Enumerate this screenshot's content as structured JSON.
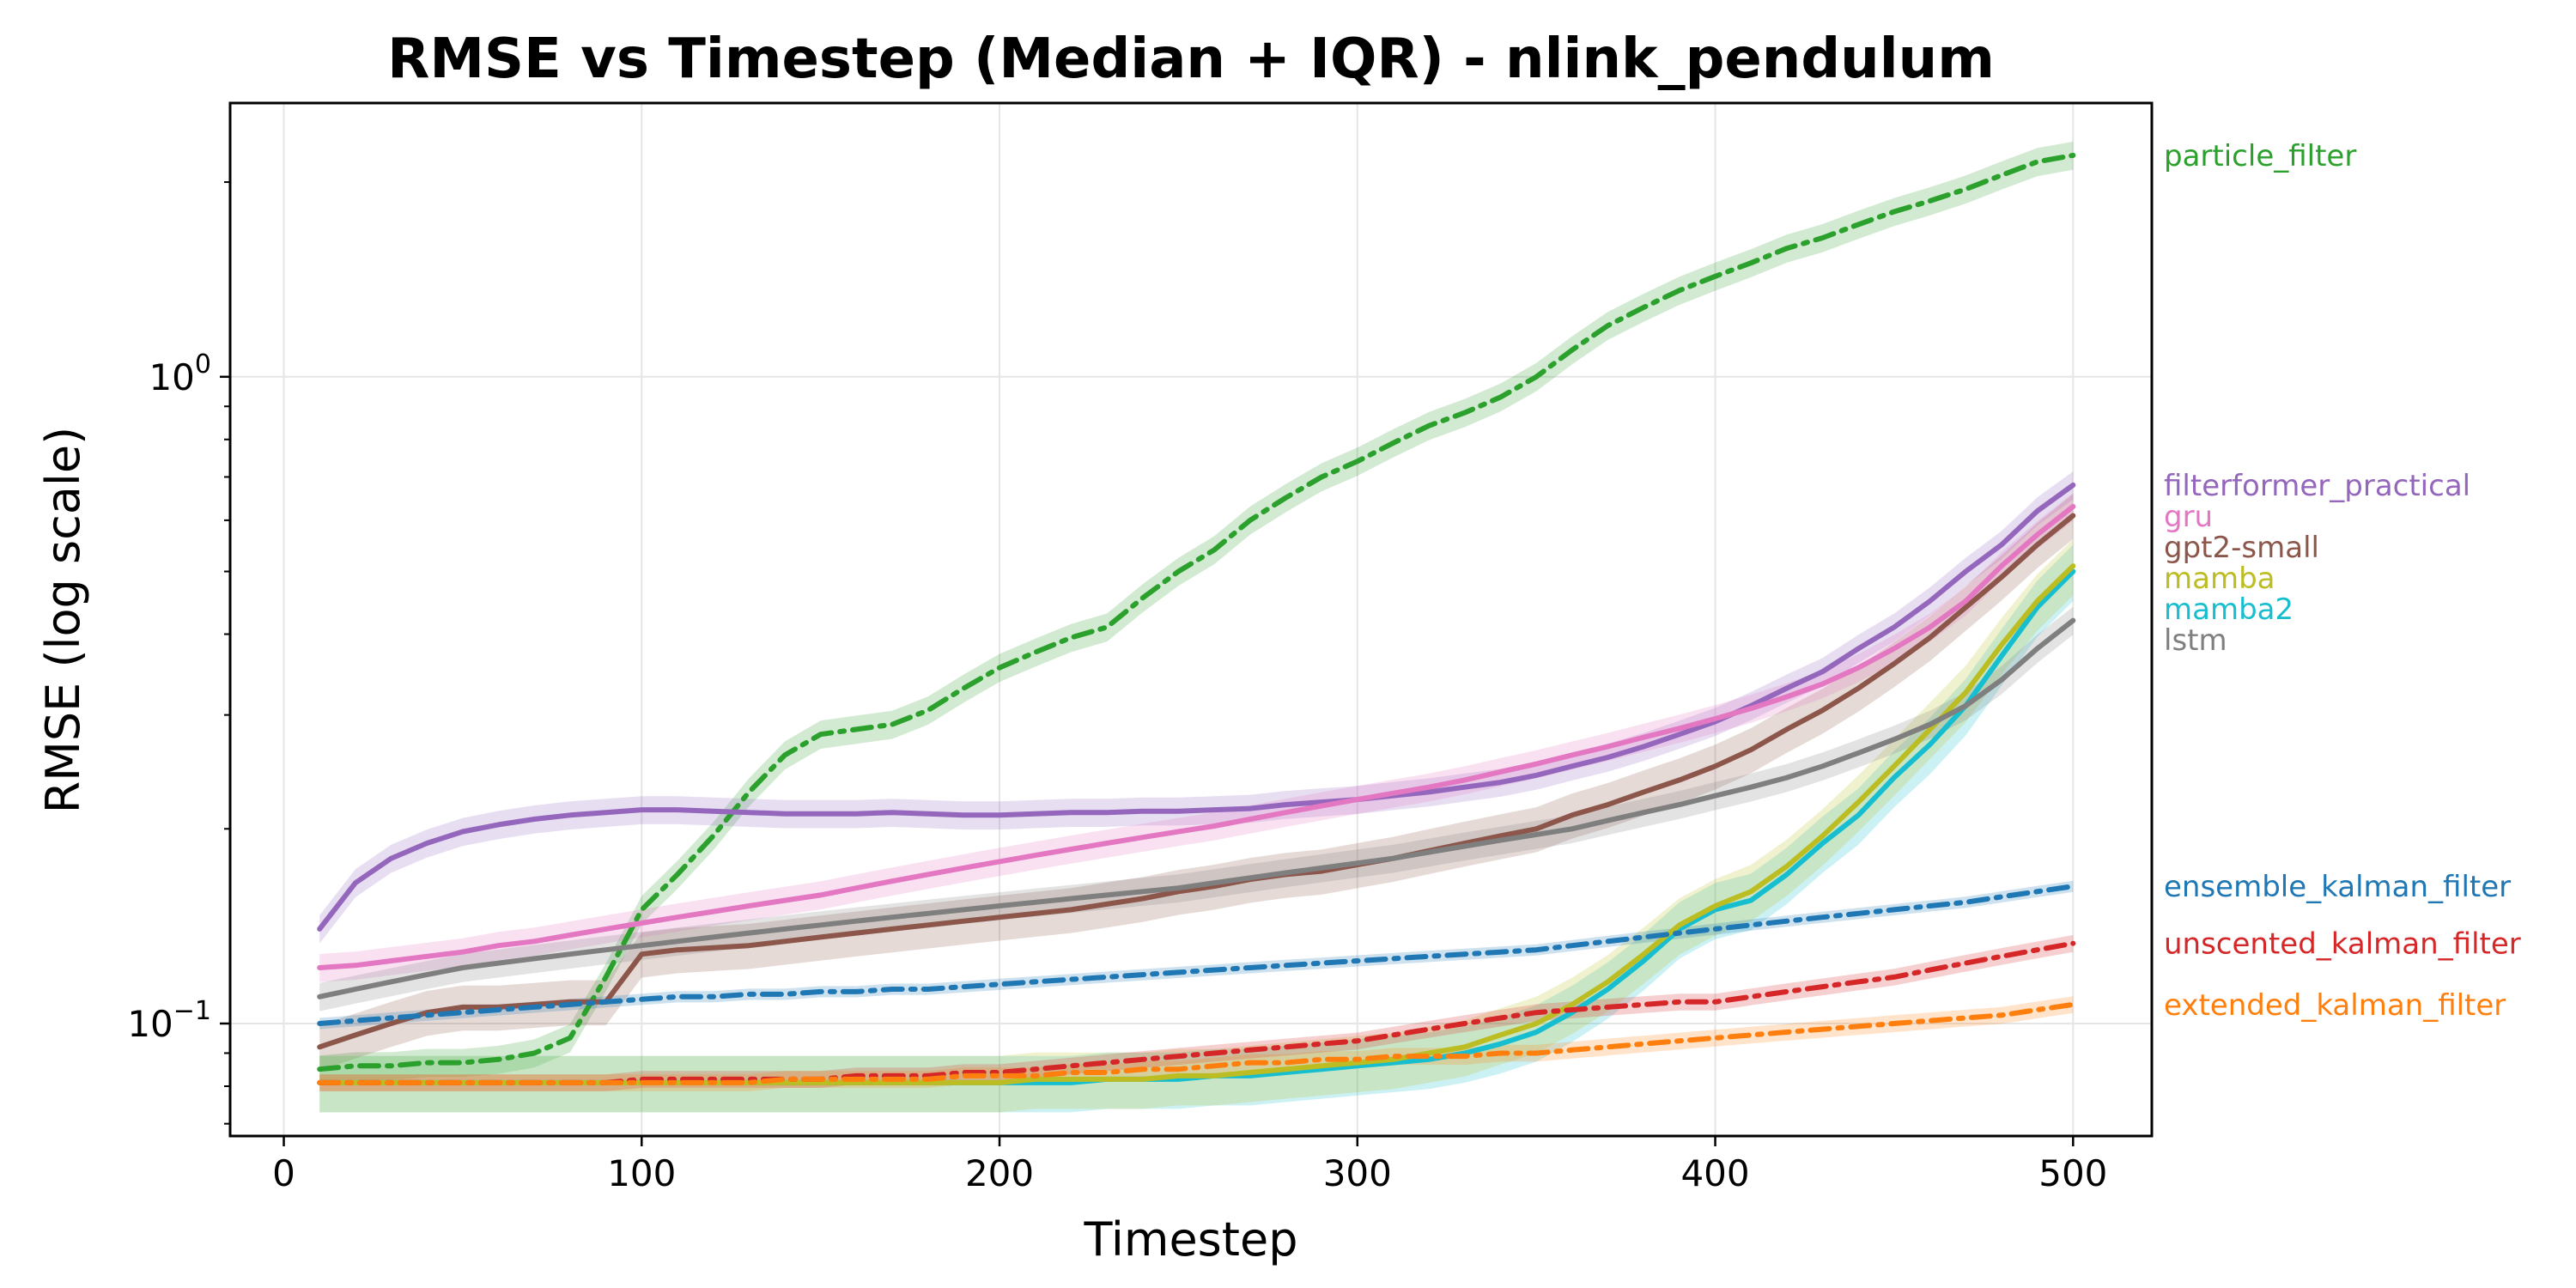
{
  "chart_data": {
    "type": "line",
    "title": "RMSE vs Timestep (Median + IQR) - nlink_pendulum",
    "xlabel": "Timestep",
    "ylabel": "RMSE (log scale)",
    "xlim": [
      -15,
      522
    ],
    "ylim": [
      0.067,
      2.65
    ],
    "yscale": "log",
    "grid": true,
    "legend_placement": "right, outside plot",
    "x_ticks": [
      {
        "value": 0,
        "label": "0"
      },
      {
        "value": 100,
        "label": "100"
      },
      {
        "value": 200,
        "label": "200"
      },
      {
        "value": 300,
        "label": "300"
      },
      {
        "value": 400,
        "label": "400"
      },
      {
        "value": 500,
        "label": "500"
      }
    ],
    "y_ticks": [
      {
        "value": 0.1,
        "base": "10",
        "exp": "−1"
      },
      {
        "value": 1,
        "base": "10",
        "exp": "0"
      }
    ],
    "x": [
      10,
      20,
      30,
      40,
      50,
      60,
      70,
      80,
      90,
      100,
      110,
      120,
      130,
      140,
      150,
      160,
      170,
      180,
      190,
      200,
      210,
      220,
      230,
      240,
      250,
      260,
      270,
      280,
      290,
      300,
      310,
      320,
      330,
      340,
      350,
      360,
      370,
      380,
      390,
      400,
      410,
      420,
      430,
      440,
      450,
      460,
      470,
      480,
      490,
      500
    ],
    "series": [
      {
        "name": "particle_filter",
        "color": "#2ca02c",
        "dash": "dashdot",
        "iqr": 0.05,
        "values": [
          0.085,
          0.086,
          0.086,
          0.087,
          0.087,
          0.088,
          0.09,
          0.095,
          0.118,
          0.15,
          0.17,
          0.195,
          0.228,
          0.26,
          0.28,
          0.285,
          0.29,
          0.305,
          0.33,
          0.355,
          0.375,
          0.395,
          0.41,
          0.455,
          0.5,
          0.54,
          0.6,
          0.65,
          0.7,
          0.74,
          0.79,
          0.84,
          0.88,
          0.93,
          1.0,
          1.1,
          1.2,
          1.28,
          1.36,
          1.43,
          1.5,
          1.58,
          1.64,
          1.72,
          1.8,
          1.87,
          1.95,
          2.05,
          2.15,
          2.2
        ]
      },
      {
        "name": "filterformer_practical",
        "color": "#9467bd",
        "dash": "solid",
        "iqr": 0.05,
        "values": [
          0.14,
          0.165,
          0.18,
          0.19,
          0.198,
          0.203,
          0.207,
          0.21,
          0.212,
          0.214,
          0.214,
          0.213,
          0.212,
          0.211,
          0.211,
          0.211,
          0.212,
          0.211,
          0.21,
          0.21,
          0.211,
          0.212,
          0.212,
          0.213,
          0.213,
          0.214,
          0.215,
          0.218,
          0.22,
          0.222,
          0.225,
          0.228,
          0.232,
          0.236,
          0.242,
          0.25,
          0.258,
          0.268,
          0.28,
          0.293,
          0.31,
          0.33,
          0.35,
          0.38,
          0.41,
          0.45,
          0.5,
          0.55,
          0.62,
          0.68
        ]
      },
      {
        "name": "gpt2-small",
        "color": "#8c564b",
        "dash": "solid",
        "iqr": 0.08,
        "values": [
          0.092,
          0.096,
          0.1,
          0.104,
          0.106,
          0.106,
          0.107,
          0.108,
          0.108,
          0.128,
          0.13,
          0.131,
          0.132,
          0.134,
          0.136,
          0.138,
          0.14,
          0.142,
          0.144,
          0.146,
          0.148,
          0.15,
          0.153,
          0.156,
          0.16,
          0.163,
          0.167,
          0.17,
          0.172,
          0.176,
          0.18,
          0.185,
          0.19,
          0.195,
          0.2,
          0.21,
          0.218,
          0.228,
          0.238,
          0.25,
          0.265,
          0.285,
          0.305,
          0.33,
          0.36,
          0.395,
          0.44,
          0.49,
          0.55,
          0.61
        ]
      },
      {
        "name": "gru",
        "color": "#e377c2",
        "dash": "solid",
        "iqr": 0.05,
        "values": [
          0.122,
          0.123,
          0.125,
          0.127,
          0.129,
          0.132,
          0.134,
          0.137,
          0.14,
          0.143,
          0.146,
          0.149,
          0.152,
          0.155,
          0.158,
          0.162,
          0.166,
          0.17,
          0.174,
          0.178,
          0.182,
          0.186,
          0.19,
          0.194,
          0.198,
          0.202,
          0.207,
          0.212,
          0.217,
          0.222,
          0.227,
          0.232,
          0.238,
          0.245,
          0.252,
          0.26,
          0.268,
          0.277,
          0.286,
          0.296,
          0.307,
          0.32,
          0.335,
          0.355,
          0.38,
          0.41,
          0.45,
          0.51,
          0.57,
          0.63
        ]
      },
      {
        "name": "mamba2",
        "color": "#17becf",
        "dash": "solid",
        "iqr": 0.1,
        "values": [
          0.081,
          0.081,
          0.081,
          0.081,
          0.081,
          0.081,
          0.081,
          0.081,
          0.081,
          0.081,
          0.081,
          0.081,
          0.081,
          0.081,
          0.081,
          0.081,
          0.081,
          0.081,
          0.081,
          0.081,
          0.081,
          0.081,
          0.082,
          0.082,
          0.082,
          0.083,
          0.083,
          0.084,
          0.085,
          0.086,
          0.087,
          0.088,
          0.09,
          0.093,
          0.097,
          0.104,
          0.113,
          0.125,
          0.14,
          0.15,
          0.155,
          0.17,
          0.19,
          0.21,
          0.24,
          0.27,
          0.31,
          0.37,
          0.44,
          0.5
        ]
      },
      {
        "name": "mamba",
        "color": "#bcbd22",
        "dash": "solid",
        "iqr": 0.1,
        "values": [
          0.081,
          0.081,
          0.081,
          0.081,
          0.081,
          0.081,
          0.081,
          0.081,
          0.081,
          0.081,
          0.081,
          0.081,
          0.081,
          0.081,
          0.081,
          0.081,
          0.081,
          0.081,
          0.081,
          0.081,
          0.082,
          0.082,
          0.082,
          0.082,
          0.083,
          0.083,
          0.084,
          0.085,
          0.086,
          0.087,
          0.088,
          0.09,
          0.092,
          0.096,
          0.1,
          0.107,
          0.116,
          0.128,
          0.142,
          0.152,
          0.16,
          0.175,
          0.195,
          0.22,
          0.25,
          0.285,
          0.325,
          0.385,
          0.45,
          0.51
        ]
      },
      {
        "name": "lstm",
        "color": "#7f7f7f",
        "dash": "solid",
        "iqr": 0.05,
        "values": [
          0.11,
          0.113,
          0.116,
          0.119,
          0.122,
          0.124,
          0.126,
          0.128,
          0.13,
          0.132,
          0.134,
          0.136,
          0.138,
          0.14,
          0.142,
          0.144,
          0.146,
          0.148,
          0.15,
          0.152,
          0.154,
          0.156,
          0.158,
          0.16,
          0.162,
          0.165,
          0.168,
          0.171,
          0.174,
          0.177,
          0.18,
          0.184,
          0.188,
          0.192,
          0.196,
          0.2,
          0.206,
          0.212,
          0.218,
          0.225,
          0.232,
          0.24,
          0.25,
          0.262,
          0.275,
          0.29,
          0.31,
          0.34,
          0.38,
          0.42
        ]
      },
      {
        "name": "ensemble_kalman_filter",
        "color": "#1f77b4",
        "dash": "dashdot",
        "iqr": 0.02,
        "values": [
          0.1,
          0.101,
          0.102,
          0.103,
          0.104,
          0.105,
          0.106,
          0.107,
          0.108,
          0.109,
          0.11,
          0.11,
          0.111,
          0.111,
          0.112,
          0.112,
          0.113,
          0.113,
          0.114,
          0.115,
          0.116,
          0.117,
          0.118,
          0.119,
          0.12,
          0.121,
          0.122,
          0.123,
          0.124,
          0.125,
          0.126,
          0.127,
          0.128,
          0.129,
          0.13,
          0.132,
          0.134,
          0.136,
          0.138,
          0.14,
          0.142,
          0.144,
          0.146,
          0.148,
          0.15,
          0.152,
          0.154,
          0.157,
          0.16,
          0.163
        ]
      },
      {
        "name": "unscented_kalman_filter",
        "color": "#d62728",
        "dash": "dashdot",
        "iqr": 0.03,
        "values": [
          0.081,
          0.081,
          0.081,
          0.081,
          0.081,
          0.081,
          0.081,
          0.081,
          0.081,
          0.082,
          0.082,
          0.082,
          0.082,
          0.082,
          0.082,
          0.083,
          0.083,
          0.083,
          0.084,
          0.084,
          0.085,
          0.086,
          0.087,
          0.088,
          0.089,
          0.09,
          0.091,
          0.092,
          0.093,
          0.094,
          0.096,
          0.098,
          0.1,
          0.102,
          0.104,
          0.105,
          0.106,
          0.107,
          0.108,
          0.108,
          0.11,
          0.112,
          0.114,
          0.116,
          0.118,
          0.121,
          0.124,
          0.127,
          0.13,
          0.133
        ]
      },
      {
        "name": "extended_kalman_filter",
        "color": "#ff7f0e",
        "dash": "dashdot",
        "iqr": 0.03,
        "values": [
          0.081,
          0.081,
          0.081,
          0.081,
          0.081,
          0.081,
          0.081,
          0.081,
          0.081,
          0.081,
          0.081,
          0.081,
          0.081,
          0.082,
          0.082,
          0.082,
          0.082,
          0.082,
          0.083,
          0.083,
          0.083,
          0.084,
          0.084,
          0.085,
          0.085,
          0.086,
          0.087,
          0.087,
          0.088,
          0.088,
          0.089,
          0.089,
          0.089,
          0.09,
          0.09,
          0.091,
          0.092,
          0.093,
          0.094,
          0.095,
          0.096,
          0.097,
          0.098,
          0.099,
          0.1,
          0.101,
          0.102,
          0.103,
          0.105,
          0.107
        ]
      }
    ]
  }
}
